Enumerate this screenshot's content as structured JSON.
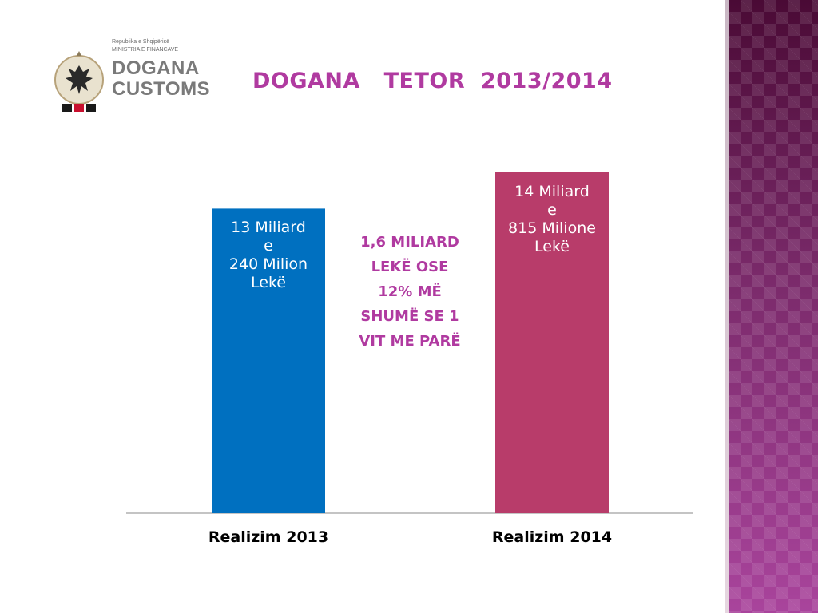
{
  "logo": {
    "line1": "Republika e Shqipërisë",
    "line2": "MINISTRIA E FINANCAVE",
    "line3": "DOGANA",
    "line4": "CUSTOMS"
  },
  "title": "DOGANA   TETOR  2013/2014",
  "annotation": [
    "1,6 MILIARD",
    "LEKË OSE",
    "12% MË",
    "SHUMË SE 1",
    "VIT ME PARË"
  ],
  "colors": {
    "title": "#b03aa0",
    "bar_2013": "#0070c0",
    "bar_2014": "#b83c6a",
    "side_strip": "#5a1040"
  },
  "chart_data": {
    "type": "bar",
    "categories": [
      "Realizim 2013",
      "Realizim 2014"
    ],
    "values": [
      13.24,
      14.815
    ],
    "units": "miliard lekë",
    "data_labels": [
      [
        "13 Miliard",
        "e",
        "240 Milion",
        "Lekë"
      ],
      [
        "14 Miliard",
        "e",
        "815 Milione",
        "Lekë"
      ]
    ],
    "bar_colors": [
      "#0070c0",
      "#b83c6a"
    ],
    "grid": false,
    "legend": "none"
  }
}
